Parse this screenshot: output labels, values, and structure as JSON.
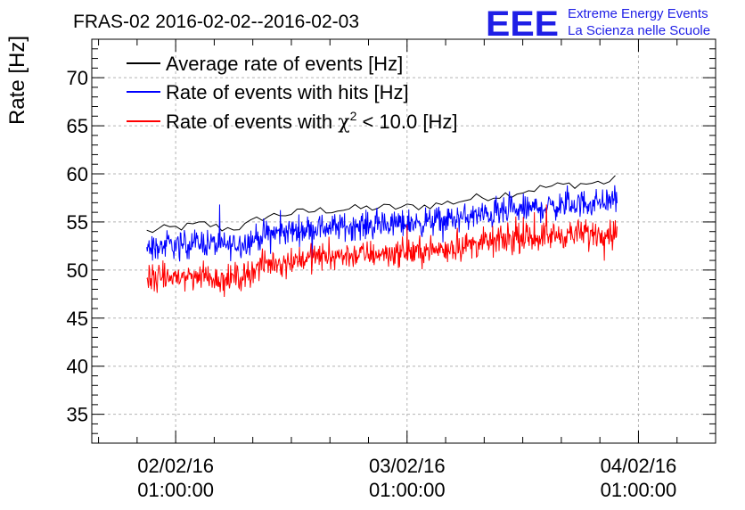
{
  "chart_data": {
    "type": "line",
    "title": "FRAS-02 2016-02-02--2016-02-03",
    "ylabel": "Rate [Hz]",
    "xlabel": "",
    "ylim": [
      32,
      74
    ],
    "xlim_hours": [
      -8.7,
      56.0
    ],
    "grid": true,
    "legend_position": "top-left",
    "yticks": [
      35,
      40,
      45,
      50,
      55,
      60,
      65,
      70
    ],
    "xticks": [
      {
        "hour": 0,
        "date": "02/02/16",
        "time": "01:00:00"
      },
      {
        "hour": 24,
        "date": "03/02/16",
        "time": "01:00:00"
      },
      {
        "hour": 48,
        "date": "04/02/16",
        "time": "01:00:00"
      }
    ],
    "series": [
      {
        "name": "Average rate of events [Hz]",
        "color": "#000000",
        "style": "smooth",
        "x_hours": [
          -3.0,
          -1.0,
          1.0,
          3.0,
          5.0,
          7.0,
          9.0,
          11.0,
          13.0,
          15.0,
          17.0,
          19.0,
          21.0,
          23.0,
          25.0,
          27.0,
          29.0,
          31.0,
          33.0,
          35.0,
          37.0,
          39.0,
          41.0,
          43.0,
          45.0,
          45.8
        ],
        "values": [
          54.0,
          54.3,
          54.5,
          54.8,
          54.3,
          54.5,
          55.5,
          55.8,
          56.0,
          56.2,
          56.3,
          56.4,
          56.5,
          56.5,
          56.6,
          56.8,
          57.1,
          57.5,
          57.7,
          58.0,
          58.4,
          58.7,
          58.9,
          59.0,
          59.2,
          59.5
        ]
      },
      {
        "name": "Rate of events with hits [Hz]",
        "color": "#0000ff",
        "style": "noisy",
        "noise": 1.0,
        "x_hours": [
          -3.0,
          -1.0,
          1.0,
          3.0,
          5.0,
          7.0,
          9.0,
          11.0,
          13.0,
          15.0,
          17.0,
          19.0,
          21.0,
          23.0,
          25.0,
          27.0,
          29.0,
          31.0,
          33.0,
          35.0,
          37.0,
          39.0,
          41.0,
          43.0,
          45.0,
          45.8
        ],
        "values": [
          52.2,
          52.5,
          52.7,
          52.9,
          52.5,
          52.8,
          53.6,
          53.9,
          54.2,
          54.4,
          54.5,
          54.6,
          54.7,
          54.8,
          54.9,
          55.1,
          55.3,
          55.6,
          55.8,
          56.1,
          56.4,
          56.6,
          56.8,
          57.0,
          57.2,
          57.3
        ]
      },
      {
        "name": "Rate of events with χ² < 10.0 [Hz]",
        "color": "#ff0000",
        "style": "noisy",
        "noise": 1.0,
        "x_hours": [
          -3.0,
          -1.0,
          1.0,
          3.0,
          5.0,
          7.0,
          9.0,
          11.0,
          13.0,
          15.0,
          17.0,
          19.0,
          21.0,
          23.0,
          25.0,
          27.0,
          29.0,
          31.0,
          33.0,
          35.0,
          37.0,
          39.0,
          41.0,
          43.0,
          45.0,
          45.8
        ],
        "values": [
          49.0,
          49.2,
          49.3,
          49.4,
          49.0,
          49.4,
          50.5,
          50.9,
          51.2,
          51.4,
          51.5,
          51.6,
          51.7,
          51.8,
          51.9,
          52.1,
          52.4,
          52.7,
          53.0,
          53.2,
          53.4,
          53.6,
          53.7,
          53.8,
          53.9,
          54.0
        ]
      }
    ],
    "legend": {
      "entries": [
        {
          "prefix": "Average rate of events [Hz]",
          "chi": "",
          "sup": "",
          "suffix": ""
        },
        {
          "prefix": "Rate of events with hits [Hz]",
          "chi": "",
          "sup": "",
          "suffix": ""
        },
        {
          "prefix": "Rate of events with ",
          "chi": "χ",
          "sup": "2",
          "suffix": " < 10.0 [Hz]"
        }
      ]
    }
  },
  "logo": {
    "letters": "EEE",
    "line1": "Extreme Energy Events",
    "line2": "La Scienza nelle Scuole",
    "color": "#1f1fe6"
  }
}
